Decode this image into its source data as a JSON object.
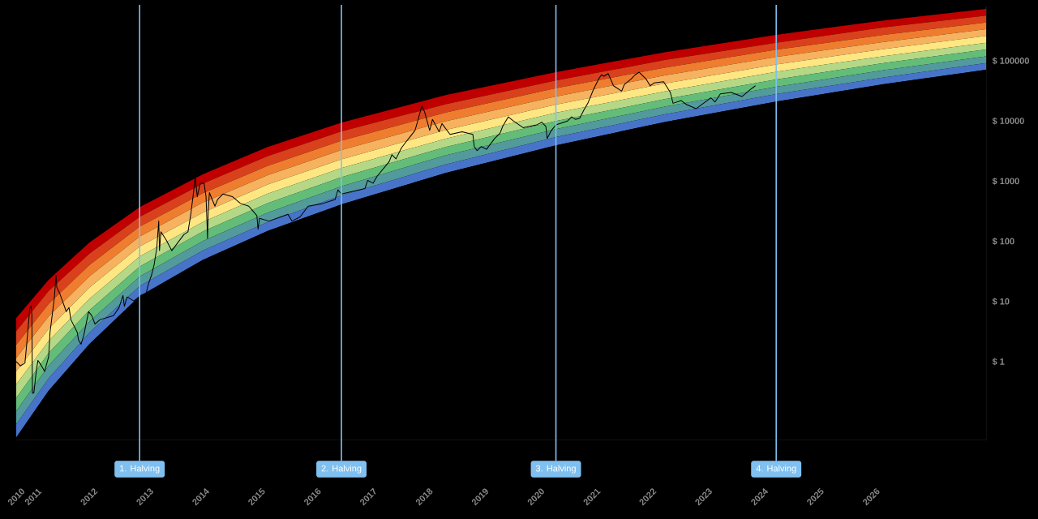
{
  "chart_data": {
    "type": "area",
    "log": true,
    "x": [
      "2010-09-13",
      "2011-04-13",
      "2012-01-03",
      "2012-11-28",
      "2014-01-15",
      "2015-03-15",
      "2016-07-09",
      "2018-05-22",
      "2020-05-11",
      "2022-04-22",
      "2024-04-20",
      "2026-03-25",
      "2028-01-22"
    ],
    "xticks": [
      {
        "value": "2010-09-13",
        "label": "2010"
      },
      {
        "value": "2011-01-01",
        "label": "2011"
      },
      {
        "value": "2012-01-01",
        "label": "2012"
      },
      {
        "value": "2013-01-01",
        "label": "2013"
      },
      {
        "value": "2014-01-01",
        "label": "2014"
      },
      {
        "value": "2015-01-01",
        "label": "2015"
      },
      {
        "value": "2016-01-01",
        "label": "2016"
      },
      {
        "value": "2017-01-01",
        "label": "2017"
      },
      {
        "value": "2018-01-01",
        "label": "2018"
      },
      {
        "value": "2019-01-01",
        "label": "2019"
      },
      {
        "value": "2020-01-01",
        "label": "2020"
      },
      {
        "value": "2021-01-01",
        "label": "2021"
      },
      {
        "value": "2022-01-01",
        "label": "2022"
      },
      {
        "value": "2023-01-01",
        "label": "2023"
      },
      {
        "value": "2024-01-01",
        "label": "2024"
      },
      {
        "value": "2025-01-01",
        "label": "2025"
      },
      {
        "value": "2026-01-01",
        "label": "2026"
      }
    ],
    "xlim": [
      "2010-09-13",
      "2028-01-22"
    ],
    "ylim": [
      0.05,
      800000
    ],
    "yticks": [
      {
        "value": 1,
        "label": "$ 1"
      },
      {
        "value": 10,
        "label": "$ 10"
      },
      {
        "value": 100,
        "label": "$ 100"
      },
      {
        "value": 1000,
        "label": "$ 1000"
      },
      {
        "value": 10000,
        "label": "$ 10000"
      },
      {
        "value": 100000,
        "label": "$ 100000"
      }
    ],
    "series": [
      {
        "color": "#c00000",
        "values": [
          5.3,
          23,
          95,
          370,
          1300,
          3700,
          9400,
          27000,
          65000,
          139000,
          270000,
          470000,
          730000
        ]
      },
      {
        "color": "#d9411c",
        "values": [
          3.2,
          15,
          62,
          255,
          910,
          2600,
          6700,
          19000,
          47000,
          103000,
          200000,
          360000,
          565000
        ]
      },
      {
        "color": "#ef7d2f",
        "values": [
          1.9,
          9.1,
          40,
          175,
          630,
          1800,
          4700,
          13800,
          35000,
          77000,
          153000,
          270000,
          435000
        ]
      },
      {
        "color": "#f6b25e",
        "values": [
          1.15,
          5.7,
          26,
          120,
          440,
          1260,
          3300,
          9900,
          25500,
          57000,
          116000,
          206000,
          336000
        ]
      },
      {
        "color": "#fee783",
        "values": [
          0.69,
          3.5,
          17,
          82,
          300,
          880,
          2300,
          7100,
          18700,
          42000,
          87000,
          157000,
          259000
        ]
      },
      {
        "color": "#b5d886",
        "values": [
          0.42,
          2.2,
          11,
          56,
          210,
          620,
          1650,
          5100,
          13700,
          31000,
          66000,
          120000,
          200000
        ]
      },
      {
        "color": "#63bd78",
        "values": [
          0.25,
          1.4,
          7.1,
          38,
          146,
          430,
          1160,
          3700,
          10000,
          23000,
          49000,
          92000,
          155000
        ]
      },
      {
        "color": "#529a9b",
        "values": [
          0.15,
          0.86,
          4.6,
          26,
          101,
          300,
          820,
          2700,
          7300,
          17300,
          37000,
          70000,
          119000
        ]
      },
      {
        "color": "#4774c9",
        "values": [
          0.091,
          0.53,
          3.0,
          18,
          70,
          210,
          580,
          1900,
          5400,
          12900,
          28000,
          53000,
          92000
        ]
      },
      {
        "color": "#000000",
        "values": [
          0.055,
          0.33,
          1.95,
          12.2,
          49,
          149,
          410,
          1370,
          3950,
          9600,
          21000,
          41000,
          71000
        ]
      },
      {
        "type": "line",
        "color": "#000000",
        "x": [
          "2010-09-13",
          "2010-10-10",
          "2010-11-09",
          "2010-11-23",
          "2010-12-11",
          "2010-12-19",
          "2010-12-24",
          "2010-12-28",
          "2011-01-06",
          "2011-01-23",
          "2011-02-02",
          "2011-02-19",
          "2011-03-18",
          "2011-04-13",
          "2011-04-22",
          "2011-05-01",
          "2011-05-19",
          "2011-05-31",
          "2011-06-05",
          "2011-06-23",
          "2011-08-06",
          "2011-08-24",
          "2011-09-05",
          "2011-10-16",
          "2011-10-25",
          "2011-11-11",
          "2011-11-29",
          "2011-12-30",
          "2012-01-20",
          "2012-02-10",
          "2012-03-14",
          "2012-06-10",
          "2012-07-16",
          "2012-08-11",
          "2012-08-20",
          "2012-09-07",
          "2012-10-21",
          "2012-11-20",
          "2012-12-13",
          "2013-01-09",
          "2013-01-26",
          "2013-02-13",
          "2013-03-03",
          "2013-03-20",
          "2013-04-02",
          "2013-04-07",
          "2013-04-16",
          "2013-05-21",
          "2013-06-26",
          "2013-09-13",
          "2013-10-10",
          "2013-10-27",
          "2013-11-14",
          "2013-11-26",
          "2013-12-10",
          "2013-12-28",
          "2014-01-23",
          "2014-02-05",
          "2014-02-15",
          "2014-02-19",
          "2014-02-27",
          "2014-04-04",
          "2014-04-22",
          "2014-05-27",
          "2014-07-28",
          "2014-09-18",
          "2014-11-11",
          "2015-01-03",
          "2015-01-11",
          "2015-01-20",
          "2015-03-23",
          "2015-07-25",
          "2015-08-20",
          "2015-10-12",
          "2015-12-04",
          "2016-03-10",
          "2016-05-29",
          "2016-06-16",
          "2016-07-09",
          "2016-12-10",
          "2016-12-28",
          "2017-02-01",
          "2017-02-27",
          "2017-05-18",
          "2017-06-04",
          "2017-07-01",
          "2017-08-05",
          "2017-09-01",
          "2017-10-06",
          "2017-11-02",
          "2017-11-20",
          "2017-12-16",
          "2018-01-03",
          "2018-02-06",
          "2018-02-24",
          "2018-04-09",
          "2018-04-27",
          "2018-06-19",
          "2018-09-06",
          "2018-11-15",
          "2018-11-24",
          "2018-12-12",
          "2019-01-08",
          "2019-02-12",
          "2019-04-06",
          "2019-05-12",
          "2019-05-29",
          "2019-07-04",
          "2019-08-07",
          "2019-10-09",
          "2020-01-05",
          "2020-02-09",
          "2020-03-06",
          "2020-03-15",
          "2020-04-11",
          "2020-05-11",
          "2020-07-26",
          "2020-08-22",
          "2020-09-17",
          "2020-10-14",
          "2020-11-10",
          "2020-12-06",
          "2021-01-11",
          "2021-02-15",
          "2021-03-05",
          "2021-03-22",
          "2021-04-18",
          "2021-05-23",
          "2021-07-15",
          "2021-08-02",
          "2021-09-15",
          "2021-10-11",
          "2021-11-07",
          "2021-12-21",
          "2022-01-17",
          "2022-02-12",
          "2022-04-15",
          "2022-05-29",
          "2022-06-16",
          "2022-08-08",
          "2022-09-13",
          "2022-11-13",
          "2023-02-18",
          "2023-03-17",
          "2023-04-21",
          "2023-07-01",
          "2023-09-09",
          "2023-11-01",
          "2023-12-06"
        ],
        "values": [
          1.0,
          0.85,
          0.95,
          2.3,
          7.9,
          8.3,
          6.1,
          0.3,
          0.3,
          0.73,
          1.05,
          0.9,
          0.69,
          1.22,
          3.1,
          4.7,
          10.8,
          27,
          17.2,
          13.9,
          6.8,
          7.9,
          5.0,
          3.1,
          2.3,
          1.95,
          2.8,
          6.8,
          5.8,
          4.2,
          5.0,
          5.8,
          7.9,
          12.6,
          8.3,
          11.9,
          10.2,
          11.7,
          12.9,
          13.5,
          20,
          27,
          41,
          77,
          217,
          70,
          144,
          105,
          70,
          129,
          144,
          267,
          610,
          1140,
          550,
          920,
          920,
          550,
          111,
          297,
          645,
          384,
          497,
          612,
          552,
          426,
          384,
          267,
          159,
          241,
          217,
          281,
          217,
          254,
          384,
          426,
          497,
          715,
          612,
          754,
          1030,
          925,
          1200,
          2120,
          2750,
          2350,
          3560,
          4380,
          5680,
          6970,
          10000,
          17700,
          14400,
          6970,
          10600,
          6630,
          9050,
          5970,
          6630,
          5970,
          3750,
          3210,
          3750,
          3380,
          5110,
          6300,
          8150,
          11700,
          10000,
          7750,
          8590,
          9510,
          8150,
          5110,
          6970,
          8590,
          10000,
          11700,
          10600,
          11100,
          15200,
          19700,
          33000,
          50000,
          58500,
          55500,
          61400,
          38500,
          31400,
          40600,
          50000,
          58500,
          64700,
          50000,
          38500,
          42800,
          45000,
          29800,
          19700,
          21800,
          18700,
          16000,
          24200,
          20700,
          28200,
          29800,
          25500,
          33000,
          38500
        ]
      }
    ],
    "ref_lines": [
      {
        "axis": "x",
        "value": "2012-11-28",
        "label": "1. Halving",
        "color": "#80c0f0"
      },
      {
        "axis": "x",
        "value": "2016-07-09",
        "label": "2. Halving",
        "color": "#80c0f0"
      },
      {
        "axis": "x",
        "value": "2020-05-11",
        "label": "3. Halving",
        "color": "#80c0f0"
      },
      {
        "axis": "x",
        "value": "2024-04-20",
        "label": "4. Halving",
        "color": "#80c0f0"
      }
    ]
  }
}
